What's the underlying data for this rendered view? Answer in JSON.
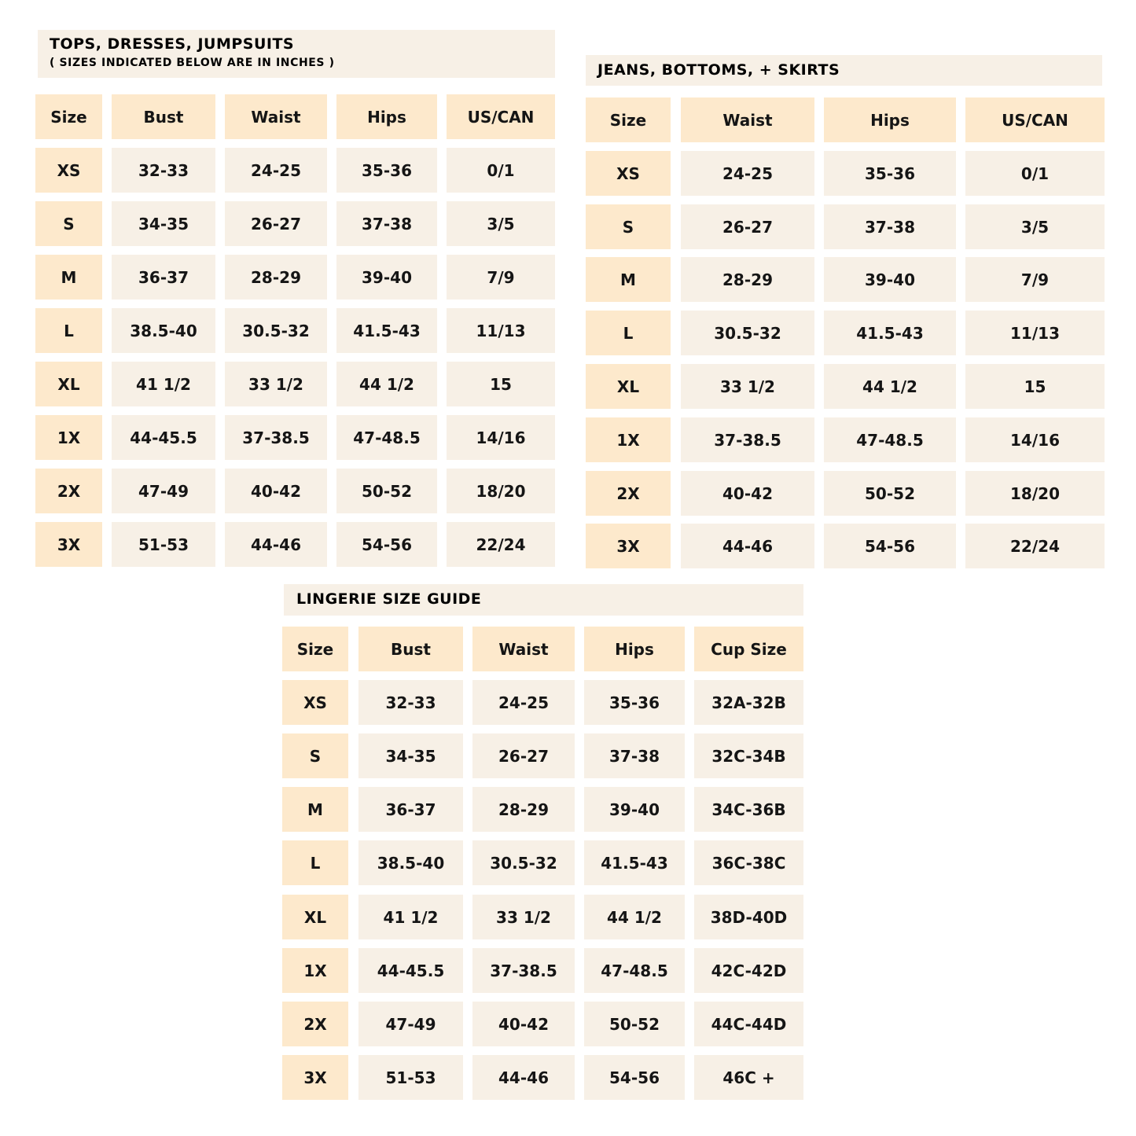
{
  "colors": {
    "header_bg": "#fde9cc",
    "cell_bg": "#f7f0e6",
    "title_bg": "#f7f0e6"
  },
  "tables": [
    {
      "title": "TOPS, DRESSES, JUMPSUITS",
      "subtitle": "( SIZES INDICATED BELOW ARE IN INCHES )",
      "headers": [
        "Size",
        "Bust",
        "Waist",
        "Hips",
        "US/CAN"
      ],
      "rows": [
        [
          "XS",
          "32-33",
          "24-25",
          "35-36",
          "0/1"
        ],
        [
          "S",
          "34-35",
          "26-27",
          "37-38",
          "3/5"
        ],
        [
          "M",
          "36-37",
          "28-29",
          "39-40",
          "7/9"
        ],
        [
          "L",
          "38.5-40",
          "30.5-32",
          "41.5-43",
          "11/13"
        ],
        [
          "XL",
          "41 1/2",
          "33 1/2",
          "44 1/2",
          "15"
        ],
        [
          "1X",
          "44-45.5",
          "37-38.5",
          "47-48.5",
          "14/16"
        ],
        [
          "2X",
          "47-49",
          "40-42",
          "50-52",
          "18/20"
        ],
        [
          "3X",
          "51-53",
          "44-46",
          "54-56",
          "22/24"
        ]
      ]
    },
    {
      "title": "JEANS, BOTTOMS, + SKIRTS",
      "headers": [
        "Size",
        "Waist",
        "Hips",
        "US/CAN"
      ],
      "rows": [
        [
          "XS",
          "24-25",
          "35-36",
          "0/1"
        ],
        [
          "S",
          "26-27",
          "37-38",
          "3/5"
        ],
        [
          "M",
          "28-29",
          "39-40",
          "7/9"
        ],
        [
          "L",
          "30.5-32",
          "41.5-43",
          "11/13"
        ],
        [
          "XL",
          "33 1/2",
          "44 1/2",
          "15"
        ],
        [
          "1X",
          "37-38.5",
          "47-48.5",
          "14/16"
        ],
        [
          "2X",
          "40-42",
          "50-52",
          "18/20"
        ],
        [
          "3X",
          "44-46",
          "54-56",
          "22/24"
        ]
      ]
    },
    {
      "title": "LINGERIE SIZE GUIDE",
      "headers": [
        "Size",
        "Bust",
        "Waist",
        "Hips",
        "Cup Size"
      ],
      "rows": [
        [
          "XS",
          "32-33",
          "24-25",
          "35-36",
          "32A-32B"
        ],
        [
          "S",
          "34-35",
          "26-27",
          "37-38",
          "32C-34B"
        ],
        [
          "M",
          "36-37",
          "28-29",
          "39-40",
          "34C-36B"
        ],
        [
          "L",
          "38.5-40",
          "30.5-32",
          "41.5-43",
          "36C-38C"
        ],
        [
          "XL",
          "41 1/2",
          "33 1/2",
          "44 1/2",
          "38D-40D"
        ],
        [
          "1X",
          "44-45.5",
          "37-38.5",
          "47-48.5",
          "42C-42D"
        ],
        [
          "2X",
          "47-49",
          "40-42",
          "50-52",
          "44C-44D"
        ],
        [
          "3X",
          "51-53",
          "44-46",
          "54-56",
          "46C +"
        ]
      ]
    }
  ]
}
